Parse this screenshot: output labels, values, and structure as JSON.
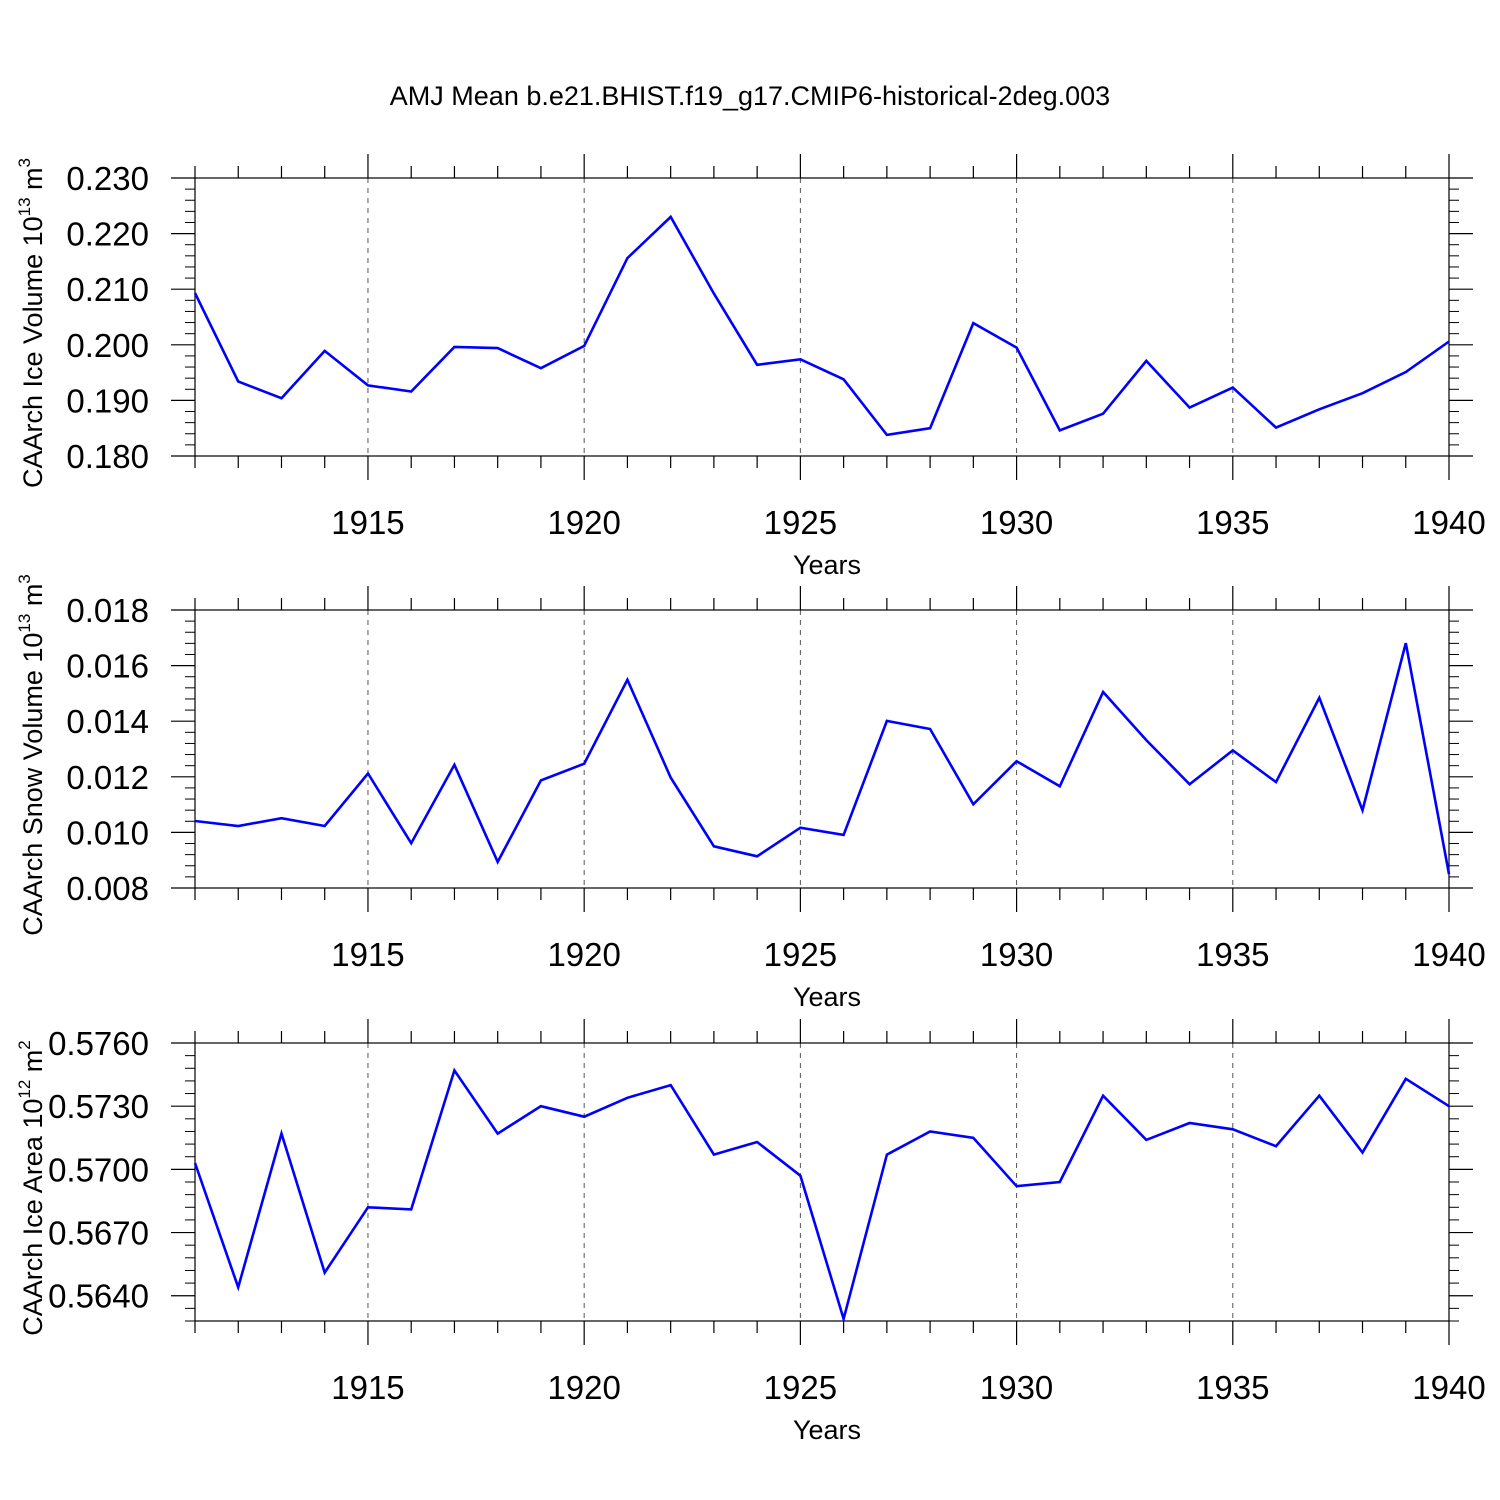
{
  "title": "AMJ Mean b.e21.BHIST.f19_g17.CMIP6-historical-2deg.003",
  "colors": {
    "series": "#0000ff",
    "axis": "#000000",
    "grid": "#555555"
  },
  "chart_data": [
    {
      "type": "line",
      "ylabel_text": "CAArch Ice Volume 10",
      "ylabel_exp": "13",
      "ylabel_unit": " m",
      "ylabel_unit_exp": "3",
      "xlabel": "Years",
      "xlim": [
        1911,
        1940
      ],
      "ylim": [
        0.18,
        0.23
      ],
      "yticks": [
        "0.180",
        "0.190",
        "0.200",
        "0.210",
        "0.220",
        "0.230"
      ],
      "ytick_values": [
        0.18,
        0.19,
        0.2,
        0.21,
        0.22,
        0.23
      ],
      "xticks": [
        "1915",
        "1920",
        "1925",
        "1930",
        "1935",
        "1940"
      ],
      "xtick_values": [
        1915,
        1920,
        1925,
        1930,
        1935,
        1940
      ],
      "grid": "vertical dashed at major x ticks",
      "x": [
        1911,
        1912,
        1913,
        1914,
        1915,
        1916,
        1917,
        1918,
        1919,
        1920,
        1921,
        1922,
        1923,
        1924,
        1925,
        1926,
        1927,
        1928,
        1929,
        1930,
        1931,
        1932,
        1933,
        1934,
        1935,
        1936,
        1937,
        1938,
        1939,
        1940
      ],
      "values": [
        0.2093,
        0.1934,
        0.1904,
        0.1989,
        0.1927,
        0.1916,
        0.1996,
        0.1994,
        0.1958,
        0.1998,
        0.2156,
        0.223,
        0.2092,
        0.1964,
        0.1974,
        0.1938,
        0.1838,
        0.185,
        0.2039,
        0.1995,
        0.1846,
        0.1876,
        0.1971,
        0.1887,
        0.1923,
        0.1851,
        0.1884,
        0.1913,
        0.1951,
        0.2006
      ]
    },
    {
      "type": "line",
      "ylabel_text": "CAArch Snow Volume 10",
      "ylabel_exp": "13",
      "ylabel_unit": " m",
      "ylabel_unit_exp": "3",
      "xlabel": "Years",
      "xlim": [
        1911,
        1940
      ],
      "ylim": [
        0.008,
        0.018
      ],
      "yticks": [
        "0.008",
        "0.010",
        "0.012",
        "0.014",
        "0.016",
        "0.018"
      ],
      "ytick_values": [
        0.008,
        0.01,
        0.012,
        0.014,
        0.016,
        0.018
      ],
      "xticks": [
        "1915",
        "1920",
        "1925",
        "1930",
        "1935",
        "1940"
      ],
      "xtick_values": [
        1915,
        1920,
        1925,
        1930,
        1935,
        1940
      ],
      "grid": "vertical dashed at major x ticks",
      "x": [
        1911,
        1912,
        1913,
        1914,
        1915,
        1916,
        1917,
        1918,
        1919,
        1920,
        1921,
        1922,
        1923,
        1924,
        1925,
        1926,
        1927,
        1928,
        1929,
        1930,
        1931,
        1932,
        1933,
        1934,
        1935,
        1936,
        1937,
        1938,
        1939,
        1940
      ],
      "values": [
        0.01041,
        0.01023,
        0.01051,
        0.01023,
        0.01212,
        0.00961,
        0.01243,
        0.00894,
        0.01187,
        0.01247,
        0.01549,
        0.01197,
        0.0095,
        0.00914,
        0.01017,
        0.00991,
        0.01401,
        0.01372,
        0.01101,
        0.01256,
        0.01166,
        0.01505,
        0.01332,
        0.01173,
        0.01295,
        0.01181,
        0.01484,
        0.0108,
        0.01681,
        0.0085
      ]
    },
    {
      "type": "line",
      "ylabel_text": "CAArch Ice Area 10",
      "ylabel_exp": "12",
      "ylabel_unit": " m",
      "ylabel_unit_exp": "2",
      "xlabel": "Years",
      "xlim": [
        1911,
        1940
      ],
      "ylim": [
        0.5628,
        0.576
      ],
      "yticks": [
        "0.5640",
        "0.5670",
        "0.5700",
        "0.5730",
        "0.5760"
      ],
      "ytick_values": [
        0.564,
        0.567,
        0.57,
        0.573,
        0.576
      ],
      "xticks": [
        "1915",
        "1920",
        "1925",
        "1930",
        "1935",
        "1940"
      ],
      "xtick_values": [
        1915,
        1920,
        1925,
        1930,
        1935,
        1940
      ],
      "grid": "vertical dashed at major x ticks",
      "x": [
        1911,
        1912,
        1913,
        1914,
        1915,
        1916,
        1917,
        1918,
        1919,
        1920,
        1921,
        1922,
        1923,
        1924,
        1925,
        1926,
        1927,
        1928,
        1929,
        1930,
        1931,
        1932,
        1933,
        1934,
        1935,
        1936,
        1937,
        1938,
        1939,
        1940
      ],
      "values": [
        0.5703,
        0.5644,
        0.5717,
        0.5651,
        0.5682,
        0.5681,
        0.5747,
        0.5717,
        0.573,
        0.5725,
        0.5734,
        0.574,
        0.5707,
        0.5713,
        0.5697,
        0.5629,
        0.5707,
        0.5718,
        0.5715,
        0.5692,
        0.5694,
        0.5735,
        0.5714,
        0.5722,
        0.5719,
        0.5711,
        0.5735,
        0.5708,
        0.5743,
        0.573
      ]
    }
  ]
}
